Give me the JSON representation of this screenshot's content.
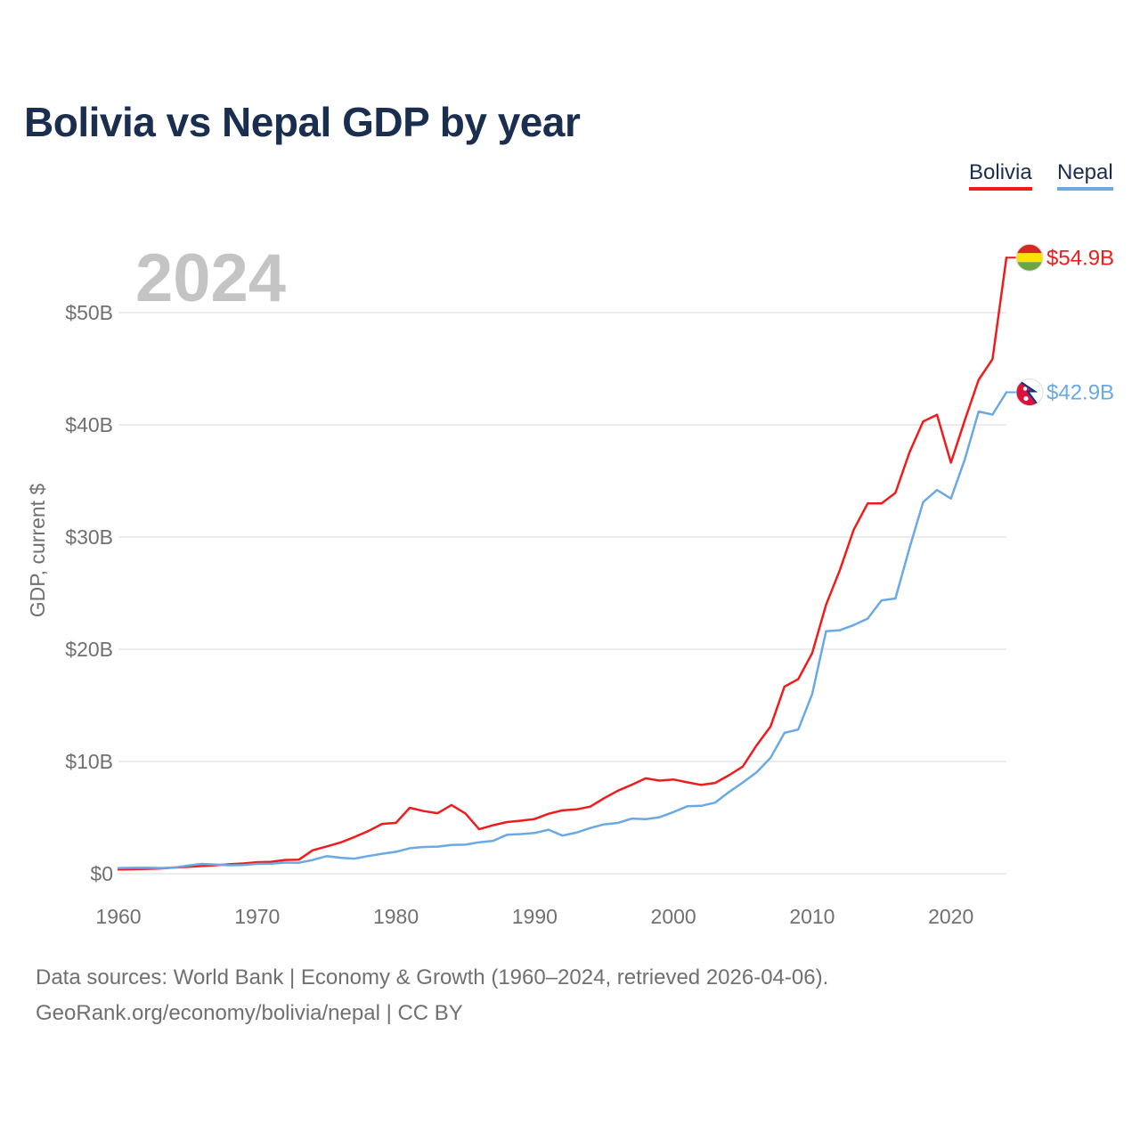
{
  "chart_data": {
    "type": "line",
    "title": "Bolivia vs Nepal GDP by year",
    "ylabel": "GDP, current $",
    "xlabel": "",
    "year_watermark": "2024",
    "xlim": [
      1960,
      2024
    ],
    "ylim": [
      0,
      55
    ],
    "x_ticks": [
      1960,
      1970,
      1980,
      1990,
      2000,
      2010,
      2020
    ],
    "y_ticks": [
      {
        "value": 0,
        "label": "$0"
      },
      {
        "value": 10,
        "label": "$10B"
      },
      {
        "value": 20,
        "label": "$20B"
      },
      {
        "value": 30,
        "label": "$30B"
      },
      {
        "value": 40,
        "label": "$40B"
      },
      {
        "value": 50,
        "label": "$50B"
      }
    ],
    "grid": true,
    "legend_position": "top-right",
    "x": [
      1960,
      1961,
      1962,
      1963,
      1964,
      1965,
      1966,
      1967,
      1968,
      1969,
      1970,
      1971,
      1972,
      1973,
      1974,
      1975,
      1976,
      1977,
      1978,
      1979,
      1980,
      1981,
      1982,
      1983,
      1984,
      1985,
      1986,
      1987,
      1988,
      1989,
      1990,
      1991,
      1992,
      1993,
      1994,
      1995,
      1996,
      1997,
      1998,
      1999,
      2000,
      2001,
      2002,
      2003,
      2004,
      2005,
      2006,
      2007,
      2008,
      2009,
      2010,
      2011,
      2012,
      2013,
      2014,
      2015,
      2016,
      2017,
      2018,
      2019,
      2020,
      2021,
      2022,
      2023,
      2024
    ],
    "series": [
      {
        "name": "Bolivia",
        "color": "#ee1c1c",
        "end_label": "$54.9B",
        "values": [
          0.37,
          0.4,
          0.43,
          0.47,
          0.55,
          0.62,
          0.68,
          0.75,
          0.84,
          0.91,
          1.02,
          1.06,
          1.22,
          1.25,
          2.09,
          2.43,
          2.78,
          3.26,
          3.79,
          4.44,
          4.53,
          5.87,
          5.58,
          5.39,
          6.12,
          5.37,
          3.96,
          4.32,
          4.6,
          4.72,
          4.87,
          5.34,
          5.64,
          5.73,
          5.98,
          6.72,
          7.4,
          7.93,
          8.5,
          8.29,
          8.4,
          8.14,
          7.91,
          8.09,
          8.77,
          9.55,
          11.45,
          13.12,
          16.67,
          17.34,
          19.65,
          23.96,
          27.08,
          30.66,
          32.99,
          33.0,
          33.94,
          37.51,
          40.29,
          40.9,
          36.63,
          40.41,
          44.01,
          45.85,
          54.9
        ]
      },
      {
        "name": "Nepal",
        "color": "#6aa9e4",
        "end_label": "$42.9B",
        "values": [
          0.51,
          0.52,
          0.54,
          0.51,
          0.54,
          0.72,
          0.87,
          0.81,
          0.75,
          0.78,
          0.87,
          0.89,
          0.99,
          0.98,
          1.22,
          1.56,
          1.42,
          1.34,
          1.57,
          1.78,
          1.95,
          2.27,
          2.38,
          2.41,
          2.56,
          2.59,
          2.8,
          2.93,
          3.47,
          3.53,
          3.63,
          3.92,
          3.4,
          3.66,
          4.07,
          4.4,
          4.52,
          4.91,
          4.86,
          5.03,
          5.49,
          6.01,
          6.05,
          6.33,
          7.27,
          8.13,
          9.04,
          10.33,
          12.55,
          12.85,
          16.0,
          21.6,
          21.7,
          22.16,
          22.73,
          24.36,
          24.52,
          28.97,
          33.11,
          34.19,
          33.43,
          36.92,
          41.18,
          40.91,
          42.9
        ]
      }
    ],
    "source_line1": "Data sources: World Bank | Economy & Growth (1960–2024, retrieved 2026-04-06).",
    "source_line2": "GeoRank.org/economy/bolivia/nepal | CC BY"
  }
}
